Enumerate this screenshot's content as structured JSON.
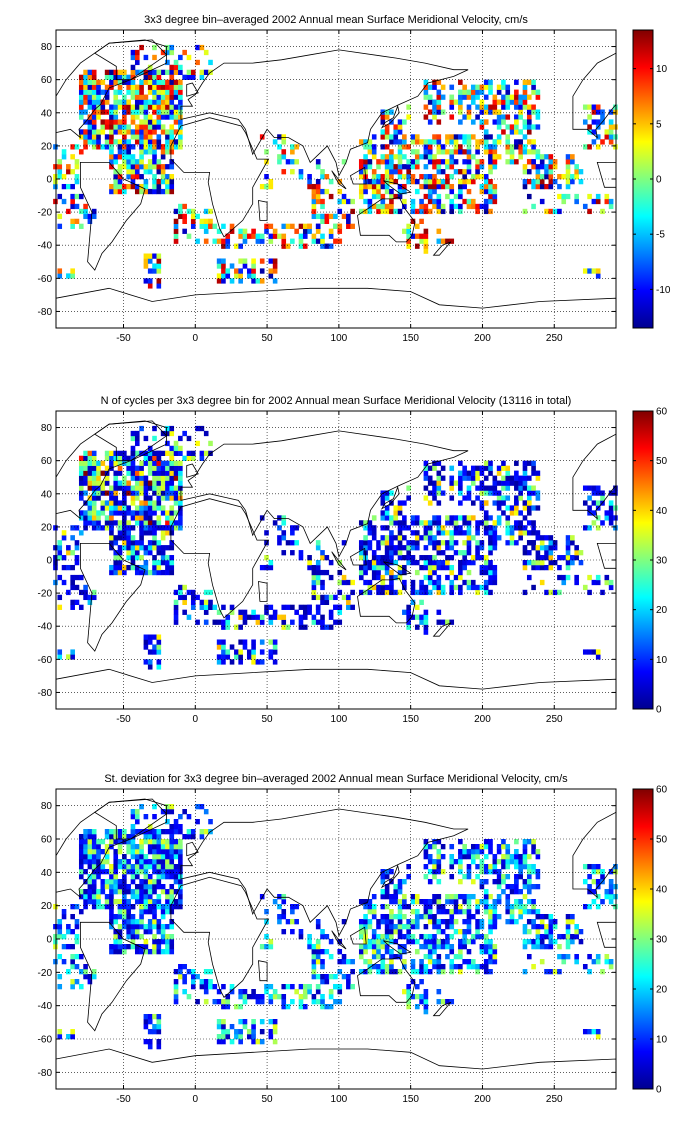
{
  "chart_data": [
    {
      "type": "heatmap",
      "title": "3x3 degree bin–averaged 2002 Annual mean Surface Meridional Velocity, cm/s",
      "xlabel": "",
      "ylabel": "",
      "xlim": [
        -97,
        293
      ],
      "ylim": [
        -90,
        90
      ],
      "x_ticks": [
        -50,
        0,
        50,
        100,
        150,
        200,
        250
      ],
      "y_ticks": [
        80,
        60,
        40,
        20,
        0,
        -20,
        -40,
        -60,
        -80
      ],
      "grid": true,
      "colormap": "jet",
      "colorbar": {
        "min": -13.5,
        "max": 13.5,
        "ticks": [
          10,
          5,
          0,
          -5,
          -10
        ]
      },
      "bin_size_deg": 3,
      "mode": "velocity"
    },
    {
      "type": "heatmap",
      "title": "N of cycles per 3x3 degree bin for 2002 Annual mean Surface Meridional Velocity (13116 in total)",
      "xlabel": "",
      "ylabel": "",
      "xlim": [
        -97,
        293
      ],
      "ylim": [
        -90,
        90
      ],
      "x_ticks": [
        -50,
        0,
        50,
        100,
        150,
        200,
        250
      ],
      "y_ticks": [
        80,
        60,
        40,
        20,
        0,
        -20,
        -40,
        -60,
        -80
      ],
      "grid": true,
      "colormap": "jet",
      "colorbar": {
        "min": 0,
        "max": 60,
        "ticks": [
          60,
          50,
          40,
          30,
          20,
          10,
          0
        ]
      },
      "bin_size_deg": 3,
      "mode": "count"
    },
    {
      "type": "heatmap",
      "title": "St. deviation for 3x3 degree bin–averaged 2002 Annual mean Surface Meridional Velocity, cm/s",
      "xlabel": "",
      "ylabel": "",
      "xlim": [
        -97,
        293
      ],
      "ylim": [
        -90,
        90
      ],
      "x_ticks": [
        -50,
        0,
        50,
        100,
        150,
        200,
        250
      ],
      "y_ticks": [
        80,
        60,
        40,
        20,
        0,
        -20,
        -40,
        -60,
        -80
      ],
      "grid": true,
      "colormap": "jet",
      "colorbar": {
        "min": 0,
        "max": 60,
        "ticks": [
          60,
          50,
          40,
          30,
          20,
          10,
          0
        ]
      },
      "bin_size_deg": 3,
      "mode": "stdev"
    }
  ],
  "sampled_regions": [
    {
      "lon": [
        -80,
        -10
      ],
      "lat": [
        20,
        65
      ],
      "density": 0.8
    },
    {
      "lon": [
        -45,
        10
      ],
      "lat": [
        62,
        80
      ],
      "density": 0.4
    },
    {
      "lon": [
        -97,
        -78
      ],
      "lat": [
        -5,
        20
      ],
      "density": 0.5
    },
    {
      "lon": [
        -60,
        -15
      ],
      "lat": [
        -8,
        20
      ],
      "density": 0.7
    },
    {
      "lon": [
        -97,
        -70
      ],
      "lat": [
        -30,
        -10
      ],
      "density": 0.35
    },
    {
      "lon": [
        -15,
        10
      ],
      "lat": [
        -38,
        -15
      ],
      "density": 0.4
    },
    {
      "lon": [
        10,
        100
      ],
      "lat": [
        -42,
        -28
      ],
      "density": 0.45
    },
    {
      "lon": [
        15,
        55
      ],
      "lat": [
        -63,
        -48
      ],
      "density": 0.6
    },
    {
      "lon": [
        45,
        75
      ],
      "lat": [
        -5,
        25
      ],
      "density": 0.25
    },
    {
      "lon": [
        80,
        110
      ],
      "lat": [
        -30,
        10
      ],
      "density": 0.35
    },
    {
      "lon": [
        115,
        210
      ],
      "lat": [
        -20,
        25
      ],
      "density": 0.6
    },
    {
      "lon": [
        130,
        150
      ],
      "lat": [
        28,
        45
      ],
      "density": 0.55
    },
    {
      "lon": [
        160,
        240
      ],
      "lat": [
        35,
        58
      ],
      "density": 0.55
    },
    {
      "lon": [
        200,
        240
      ],
      "lat": [
        10,
        35
      ],
      "density": 0.45
    },
    {
      "lon": [
        230,
        270
      ],
      "lat": [
        -5,
        15
      ],
      "density": 0.5
    },
    {
      "lon": [
        230,
        293
      ],
      "lat": [
        -20,
        -10
      ],
      "density": 0.3
    },
    {
      "lon": [
        270,
        293
      ],
      "lat": [
        20,
        45
      ],
      "density": 0.5
    },
    {
      "lon": [
        145,
        180
      ],
      "lat": [
        -45,
        -25
      ],
      "density": 0.3
    },
    {
      "lon": [
        -95,
        -85
      ],
      "lat": [
        -60,
        -55
      ],
      "density": 0.5
    },
    {
      "lon": [
        -35,
        -25
      ],
      "lat": [
        -65,
        -45
      ],
      "density": 0.5
    },
    {
      "lon": [
        270,
        280
      ],
      "lat": [
        -60,
        -55
      ],
      "density": 0.5
    }
  ]
}
